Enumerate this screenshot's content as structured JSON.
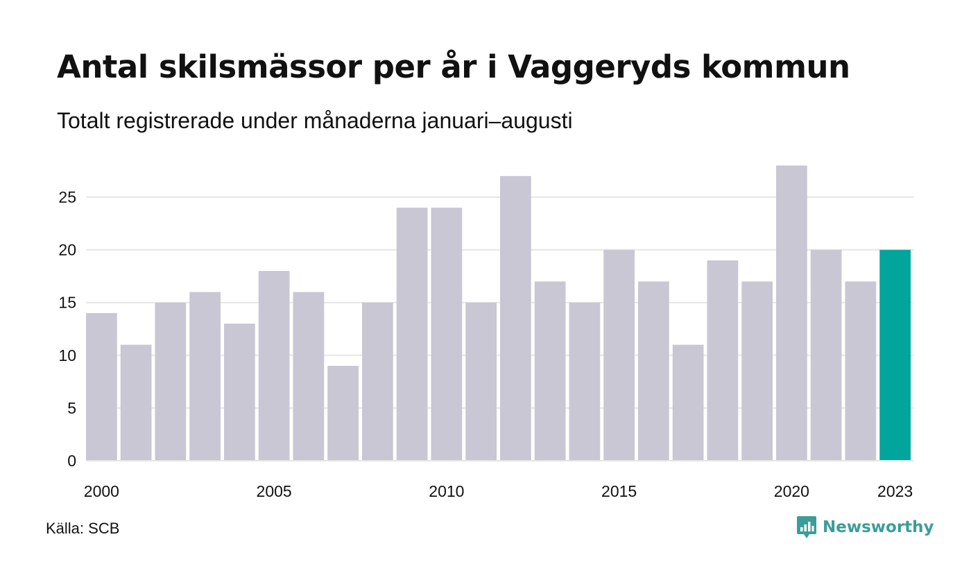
{
  "header": {
    "title": "Antal skilsmässor per år i Vaggeryds kommun",
    "subtitle": "Totalt registrerade under månaderna januari–augusti"
  },
  "footer": {
    "source": "Källa: SCB",
    "brand": "Newsworthy",
    "brand_icon": "newsworthy-logo-icon"
  },
  "colors": {
    "bar_default": "#c8c7d3",
    "bar_highlight": "#00a59b",
    "grid": "#e5e5e5",
    "brand": "#3a9e98"
  },
  "chart_data": {
    "type": "bar",
    "categories": [
      "2000",
      "2001",
      "2002",
      "2003",
      "2004",
      "2005",
      "2006",
      "2007",
      "2008",
      "2009",
      "2010",
      "2011",
      "2012",
      "2013",
      "2014",
      "2015",
      "2016",
      "2017",
      "2018",
      "2019",
      "2020",
      "2021",
      "2022",
      "2023"
    ],
    "values": [
      14,
      11,
      15,
      16,
      13,
      18,
      16,
      9,
      15,
      24,
      24,
      15,
      27,
      17,
      15,
      20,
      17,
      11,
      19,
      17,
      28,
      20,
      17,
      20
    ],
    "x_tick_labels": [
      "2000",
      "2005",
      "2010",
      "2015",
      "2020",
      "2023"
    ],
    "y_ticks": [
      0,
      5,
      10,
      15,
      20,
      25
    ],
    "ylim": [
      0,
      28
    ],
    "highlight_category": "2023",
    "grid": true,
    "legend": false,
    "title": "Antal skilsmässor per år i Vaggeryds kommun",
    "subtitle": "Totalt registrerade under månaderna januari–augusti",
    "xlabel": "",
    "ylabel": ""
  }
}
